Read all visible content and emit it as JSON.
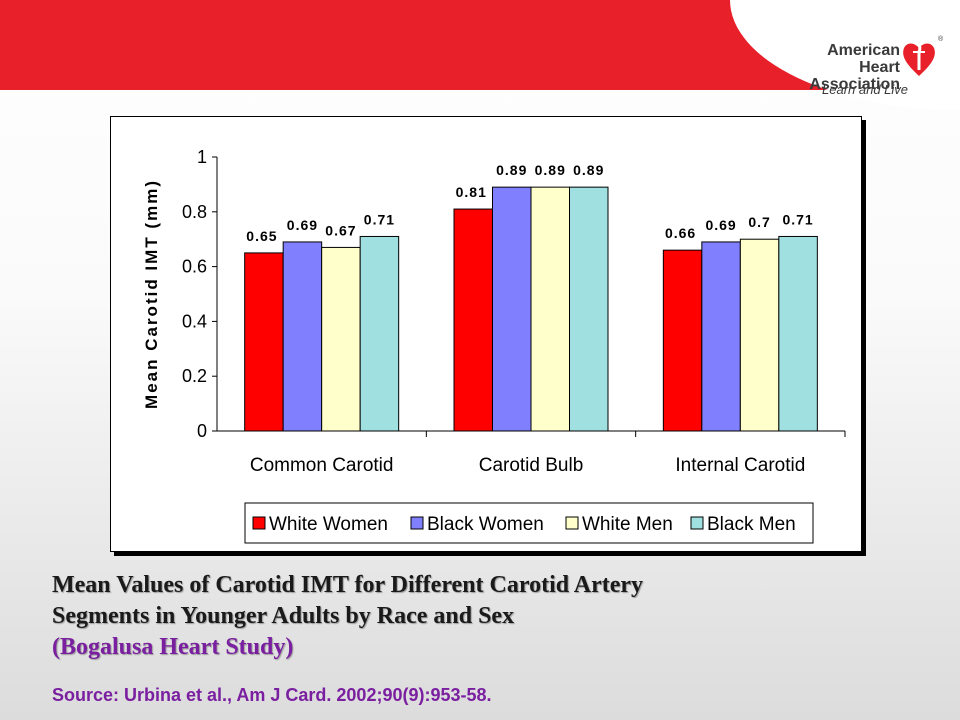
{
  "logo": {
    "line1": "American Heart",
    "line2": "Association",
    "tagline": "Learn and Live",
    "registered": "®"
  },
  "caption": {
    "line1": "Mean Values of Carotid IMT for Different  Carotid Artery",
    "line2": "Segments in Younger Adults by Race and Sex",
    "study": "(Bogalusa Heart Study)",
    "source": "Source: Urbina et al., Am J Card. 2002;90(9):953-58."
  },
  "colors": {
    "brand_red": "#e8202a",
    "caption_purple": "#7a1fa0"
  },
  "chart_data": {
    "type": "bar",
    "title": "",
    "xlabel": "",
    "ylabel": "Mean Carotid IMT (mm)",
    "ylim": [
      0,
      1
    ],
    "yticks": [
      "0",
      "0.2",
      "0.4",
      "0.6",
      "0.8",
      "1"
    ],
    "grid": false,
    "legend_position": "bottom",
    "categories": [
      "Common Carotid",
      "Carotid Bulb",
      "Internal Carotid"
    ],
    "series": [
      {
        "name": "White Women",
        "color": "#ff0000",
        "values": [
          0.65,
          0.81,
          0.66
        ],
        "labels": [
          "0.65",
          "0.81",
          "0.66"
        ]
      },
      {
        "name": "Black Women",
        "color": "#8080ff",
        "values": [
          0.69,
          0.89,
          0.69
        ],
        "labels": [
          "0.69",
          "0.89",
          "0.69"
        ]
      },
      {
        "name": "White Men",
        "color": "#ffffcc",
        "values": [
          0.67,
          0.89,
          0.7
        ],
        "labels": [
          "0.67",
          "0.89",
          "0.7"
        ]
      },
      {
        "name": "Black Men",
        "color": "#a0e0e0",
        "values": [
          0.71,
          0.89,
          0.71
        ],
        "labels": [
          "0.71",
          "0.89",
          "0.71"
        ]
      }
    ]
  }
}
